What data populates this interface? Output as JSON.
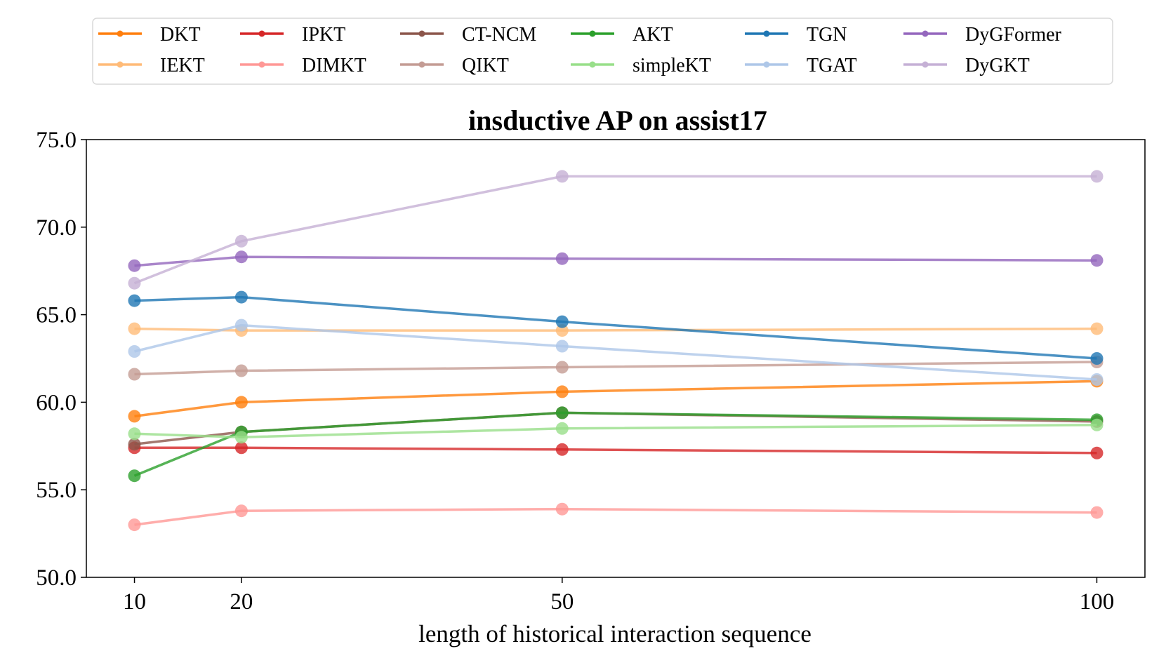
{
  "chart_data": {
    "type": "line",
    "title": "insductive AP on assist17",
    "xlabel": "length of historical interaction sequence",
    "ylabel": "",
    "x": [
      10,
      20,
      50,
      100
    ],
    "x_tick_labels": [
      "10",
      "20",
      "50",
      "100"
    ],
    "ylim": [
      50.0,
      75.0
    ],
    "y_ticks": [
      50.0,
      55.0,
      60.0,
      65.0,
      70.0,
      75.0
    ],
    "y_tick_labels": [
      "50.0",
      "55.0",
      "60.0",
      "65.0",
      "70.0",
      "75.0"
    ],
    "grid": false,
    "legend_position": "top",
    "series": [
      {
        "name": "DKT",
        "color": "#ff7f0e",
        "values": [
          59.2,
          60.0,
          60.6,
          61.2
        ]
      },
      {
        "name": "IEKT",
        "color": "#ffbb78",
        "values": [
          64.2,
          64.1,
          64.1,
          64.2
        ]
      },
      {
        "name": "IPKT",
        "color": "#d62728",
        "values": [
          57.4,
          57.4,
          57.3,
          57.1
        ]
      },
      {
        "name": "DIMKT",
        "color": "#ff9896",
        "values": [
          53.0,
          53.8,
          53.9,
          53.7
        ]
      },
      {
        "name": "CT-NCM",
        "color": "#8c564b",
        "values": [
          57.6,
          58.3,
          59.4,
          58.9
        ]
      },
      {
        "name": "QIKT",
        "color": "#c49c94",
        "values": [
          61.6,
          61.8,
          62.0,
          62.3
        ]
      },
      {
        "name": "AKT",
        "color": "#2ca02c",
        "values": [
          55.8,
          58.3,
          59.4,
          59.0
        ]
      },
      {
        "name": "simpleKT",
        "color": "#98df8a",
        "values": [
          58.2,
          58.0,
          58.5,
          58.7
        ]
      },
      {
        "name": "TGN",
        "color": "#1f77b4",
        "values": [
          65.8,
          66.0,
          64.6,
          62.5
        ]
      },
      {
        "name": "TGAT",
        "color": "#aec7e8",
        "values": [
          62.9,
          64.4,
          63.2,
          61.3
        ]
      },
      {
        "name": "DyGFormer",
        "color": "#9467bd",
        "values": [
          67.8,
          68.3,
          68.2,
          68.1
        ]
      },
      {
        "name": "DyGKT",
        "color": "#c5b0d5",
        "values": [
          66.8,
          69.2,
          72.9,
          72.9
        ]
      }
    ]
  }
}
